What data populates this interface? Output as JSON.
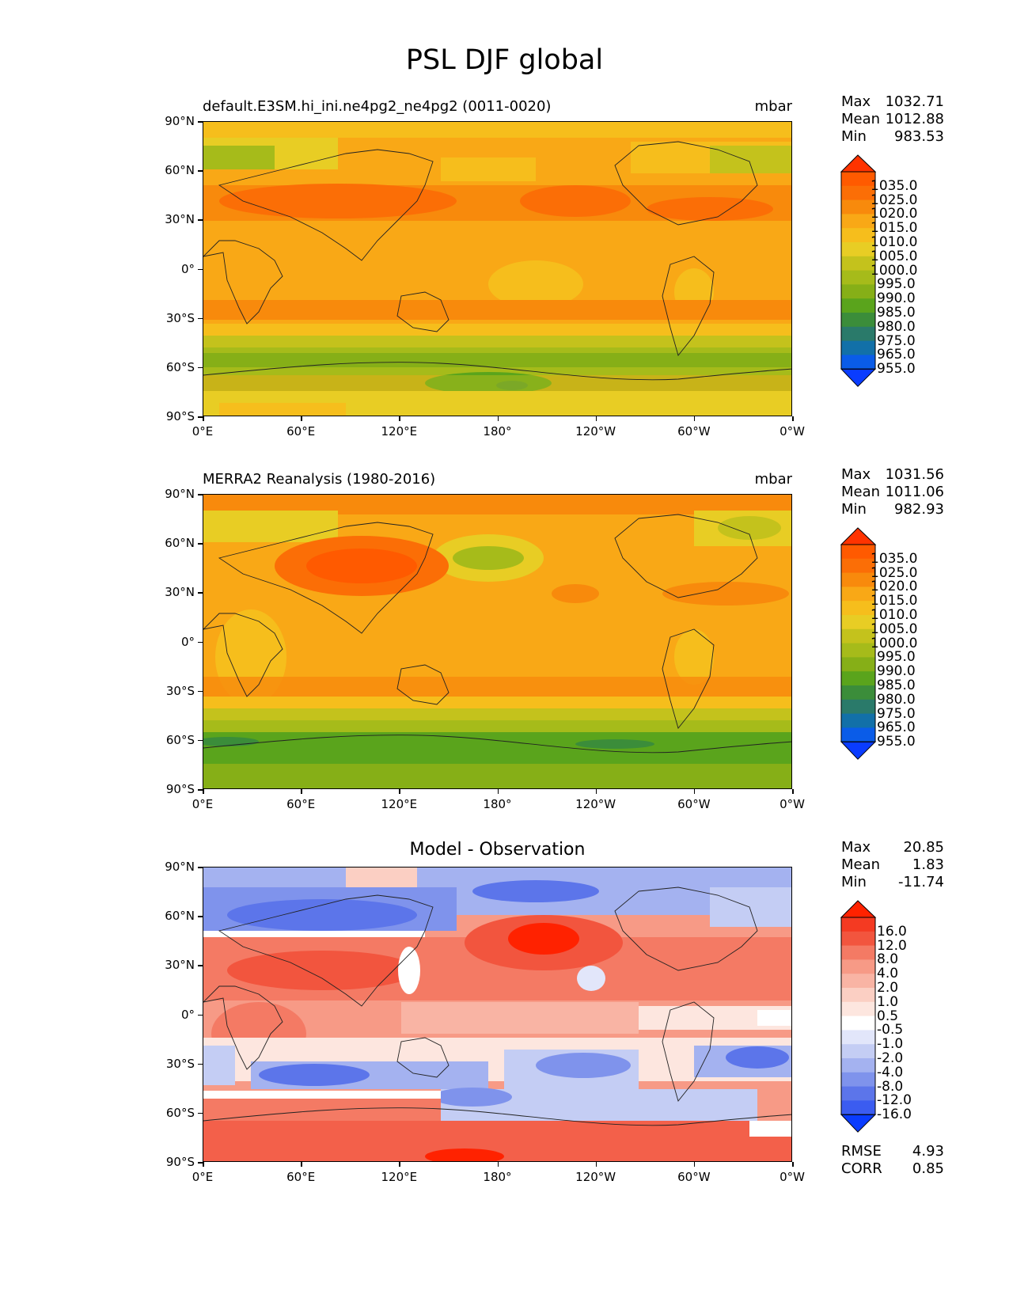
{
  "figure_title": "PSL DJF global",
  "panels": [
    {
      "title": "default.E3SM.hi_ini.ne4pg2_ne4pg2 (0011-0020)",
      "unit": "mbar",
      "stats": {
        "max_label": "Max",
        "max": "1032.71",
        "mean_label": "Mean",
        "mean": "1012.88",
        "min_label": "Min",
        "min": "983.53"
      }
    },
    {
      "title": "MERRA2 Reanalysis (1980-2016)",
      "unit": "mbar",
      "stats": {
        "max_label": "Max",
        "max": "1031.56",
        "mean_label": "Mean",
        "mean": "1011.06",
        "min_label": "Min",
        "min": "982.93"
      }
    },
    {
      "title": "Model - Observation",
      "unit": "",
      "stats": {
        "max_label": "Max",
        "max": "20.85",
        "mean_label": "Mean",
        "mean": "1.83",
        "min_label": "Min",
        "min": "-11.74"
      },
      "extra": {
        "rmse_label": "RMSE",
        "rmse": "4.93",
        "corr_label": "CORR",
        "corr": "0.85"
      }
    }
  ],
  "y_ticks": [
    "90°N",
    "60°N",
    "30°N",
    "0°",
    "30°S",
    "60°S",
    "90°S"
  ],
  "x_ticks": [
    "0°E",
    "60°E",
    "120°E",
    "180°",
    "120°W",
    "60°W",
    "0°W"
  ],
  "colorbar_field": {
    "labels": [
      "1035.0",
      "1025.0",
      "1020.0",
      "1015.0",
      "1010.0",
      "1005.0",
      "1000.0",
      "995.0",
      "990.0",
      "985.0",
      "980.0",
      "975.0",
      "965.0",
      "955.0"
    ],
    "colors": [
      "#ff3300",
      "#ff5a00",
      "#fb6e06",
      "#f88a0c",
      "#f9a816",
      "#f6be1c",
      "#e8cd24",
      "#c4c21c",
      "#a6bb1a",
      "#86af17",
      "#5aa41c",
      "#3b8d3a",
      "#2a7a6a",
      "#1270a8",
      "#0a5ce8",
      "#0a3cff"
    ]
  },
  "colorbar_diff": {
    "labels": [
      "16.0",
      "12.0",
      "8.0",
      "4.0",
      "2.0",
      "1.0",
      "0.5",
      "-0.5",
      "-1.0",
      "-2.0",
      "-4.0",
      "-8.0",
      "-12.0",
      "-16.0"
    ],
    "colors": [
      "#ff2200",
      "#f43a22",
      "#f2553e",
      "#f47a64",
      "#f79a86",
      "#f9b4a4",
      "#fbcfc3",
      "#fde6df",
      "#ffffff",
      "#e2e6fa",
      "#c4cdf4",
      "#a4b2f0",
      "#7f93ec",
      "#5c75ea",
      "#3b5cf0",
      "#0a3cff"
    ]
  },
  "chart_data": [
    {
      "type": "heatmap",
      "title": "default.E3SM.hi_ini.ne4pg2_ne4pg2 (0011-0020)",
      "unit": "mbar",
      "xlim": [
        0,
        360
      ],
      "ylim": [
        -90,
        90
      ],
      "stats": {
        "max": 1032.71,
        "mean": 1012.88,
        "min": 983.53
      },
      "bands": [
        {
          "lat": [
            80,
            90
          ],
          "mbar": 1012
        },
        {
          "lat": [
            60,
            80
          ],
          "mbar": 1010
        },
        {
          "lat": [
            45,
            60
          ],
          "mbar": 1015
        },
        {
          "lat": [
            30,
            45
          ],
          "mbar": 1022
        },
        {
          "lat": [
            20,
            30
          ],
          "mbar": 1017
        },
        {
          "lat": [
            -20,
            20
          ],
          "mbar": 1011
        },
        {
          "lat": [
            -35,
            -20
          ],
          "mbar": 1016
        },
        {
          "lat": [
            -50,
            -35
          ],
          "mbar": 1010
        },
        {
          "lat": [
            -70,
            -50
          ],
          "mbar": 992
        },
        {
          "lat": [
            -80,
            -70
          ],
          "mbar": 995
        },
        {
          "lat": [
            -90,
            -80
          ],
          "mbar": 1005
        }
      ]
    },
    {
      "type": "heatmap",
      "title": "MERRA2 Reanalysis (1980-2016)",
      "unit": "mbar",
      "xlim": [
        0,
        360
      ],
      "ylim": [
        -90,
        90
      ],
      "stats": {
        "max": 1031.56,
        "mean": 1011.06,
        "min": 982.93
      },
      "bands": [
        {
          "lat": [
            80,
            90
          ],
          "mbar": 1012
        },
        {
          "lat": [
            60,
            80
          ],
          "mbar": 1011
        },
        {
          "lat": [
            45,
            60
          ],
          "mbar": 1018
        },
        {
          "lat": [
            30,
            45
          ],
          "mbar": 1022
        },
        {
          "lat": [
            20,
            30
          ],
          "mbar": 1017
        },
        {
          "lat": [
            -20,
            20
          ],
          "mbar": 1011
        },
        {
          "lat": [
            -35,
            -20
          ],
          "mbar": 1016
        },
        {
          "lat": [
            -50,
            -35
          ],
          "mbar": 1007
        },
        {
          "lat": [
            -70,
            -50
          ],
          "mbar": 988
        },
        {
          "lat": [
            -80,
            -70
          ],
          "mbar": 990
        },
        {
          "lat": [
            -90,
            -80
          ],
          "mbar": 995
        }
      ]
    },
    {
      "type": "heatmap",
      "title": "Model - Observation",
      "xlim": [
        0,
        360
      ],
      "ylim": [
        -90,
        90
      ],
      "stats": {
        "max": 20.85,
        "mean": 1.83,
        "min": -11.74,
        "rmse": 4.93,
        "corr": 0.85
      },
      "bands": [
        {
          "lat": [
            70,
            90
          ],
          "diff": -2
        },
        {
          "lat": [
            55,
            70
          ],
          "diff": -5
        },
        {
          "lat": [
            45,
            55
          ],
          "diff": 2
        },
        {
          "lat": [
            20,
            45
          ],
          "diff": 6
        },
        {
          "lat": [
            0,
            20
          ],
          "diff": 3
        },
        {
          "lat": [
            -25,
            0
          ],
          "diff": 1
        },
        {
          "lat": [
            -45,
            -25
          ],
          "diff": -4
        },
        {
          "lat": [
            -50,
            -45
          ],
          "diff": 0.5
        },
        {
          "lat": [
            -75,
            -50
          ],
          "diff": 6
        },
        {
          "lat": [
            -90,
            -75
          ],
          "diff": 8
        }
      ]
    }
  ]
}
